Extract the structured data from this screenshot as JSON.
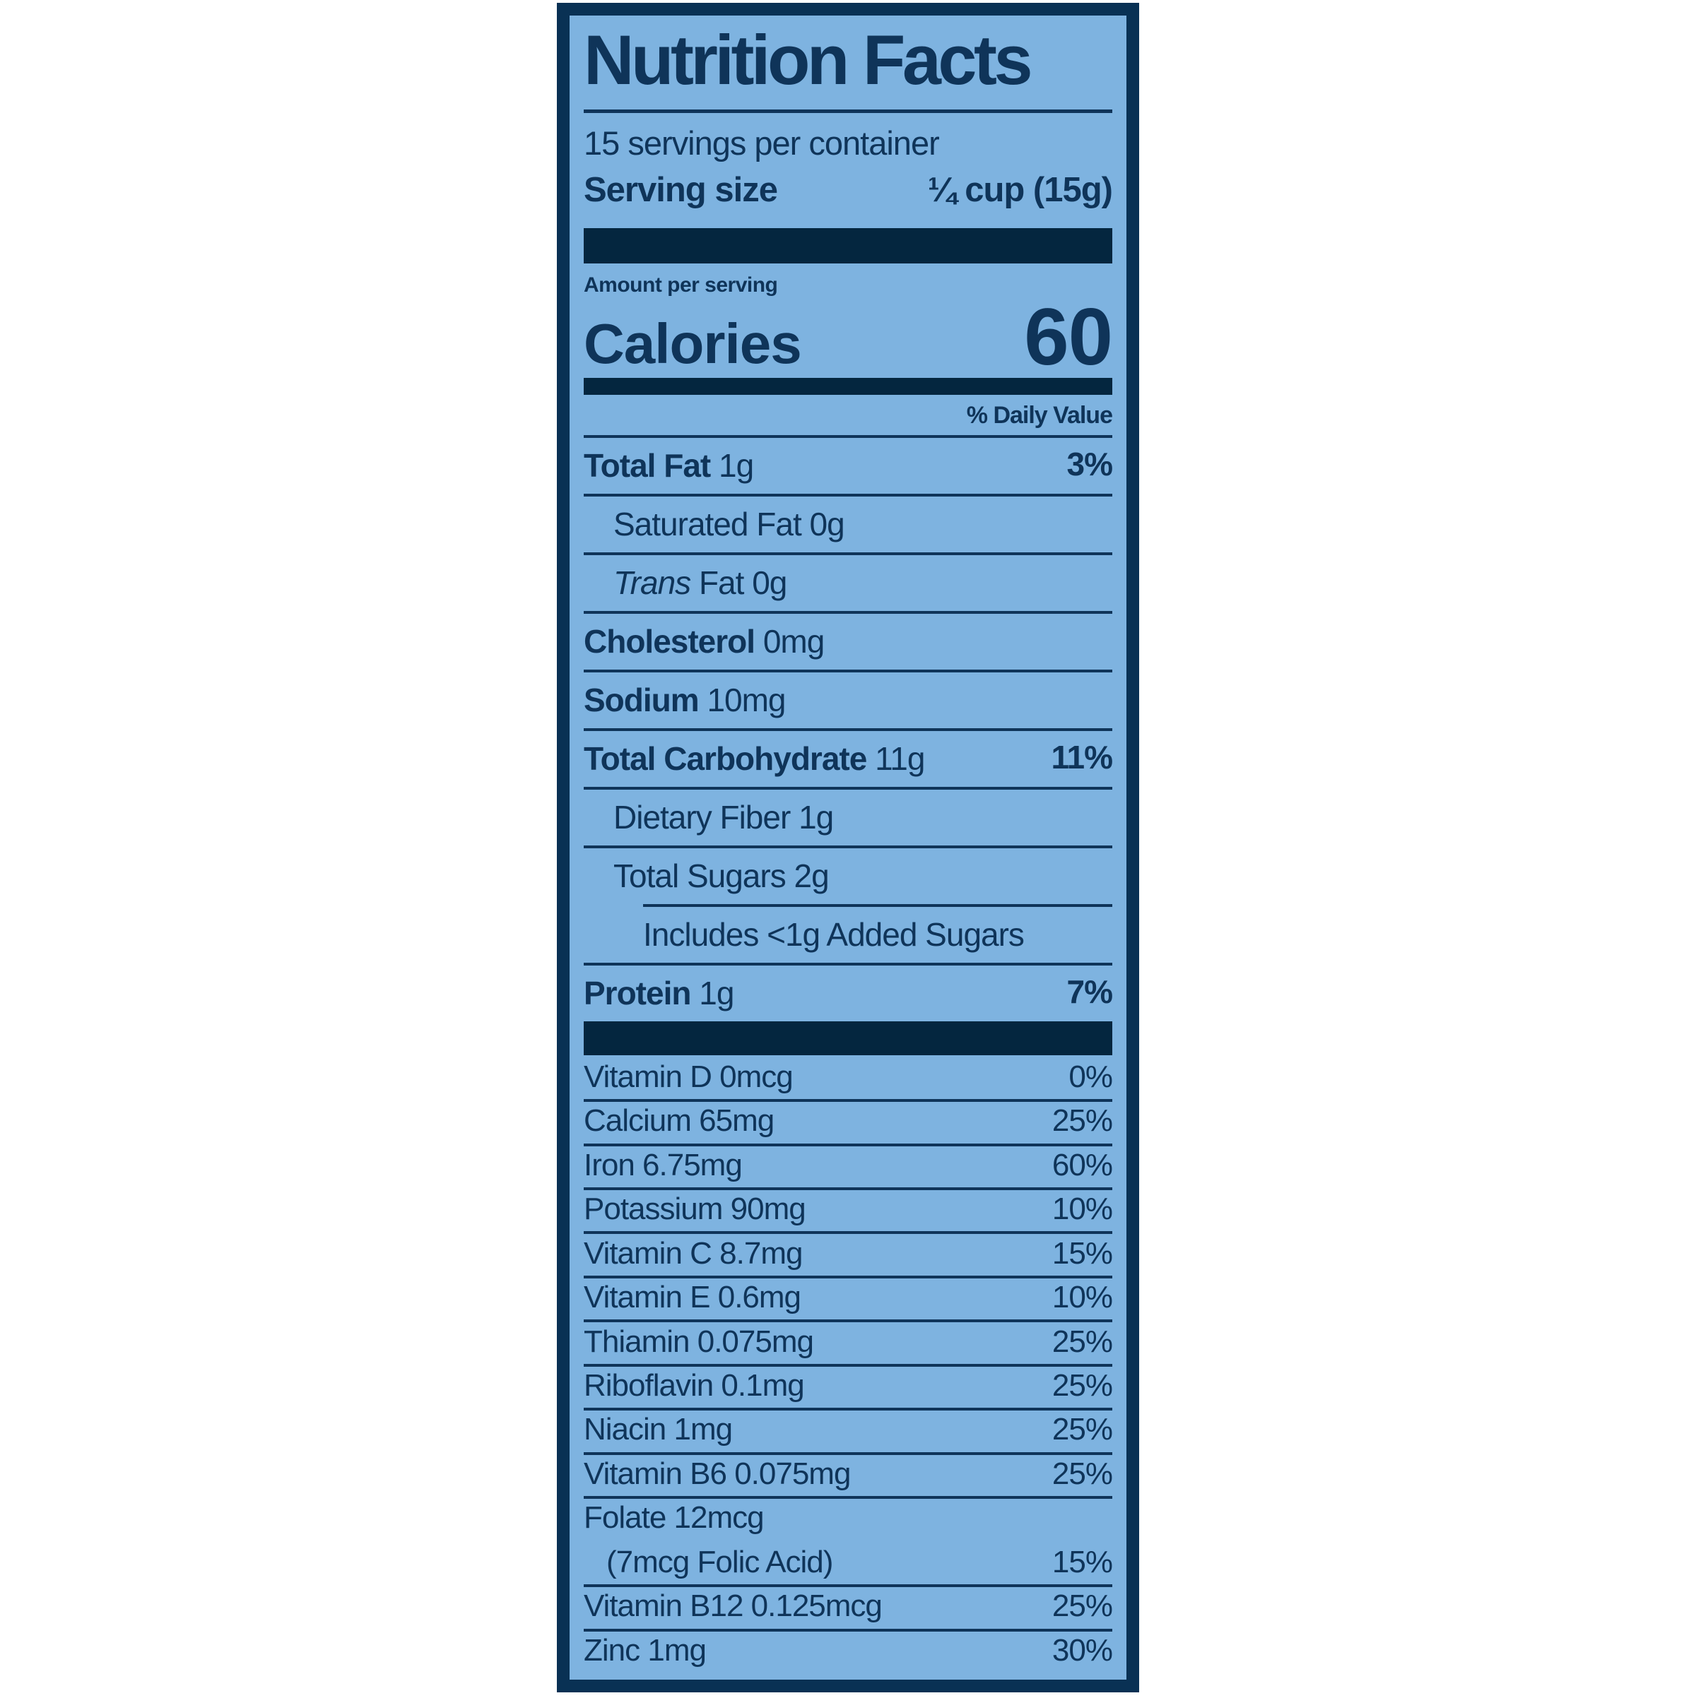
{
  "label": {
    "title": "Nutrition Facts",
    "servings_per_container": "15 servings per container",
    "serving_size_label": "Serving size",
    "serving_size_value": "¼ cup (15g)",
    "amount_per_serving": "Amount per serving",
    "calories_label": "Calories",
    "calories_value": "60",
    "daily_value_header": "% Daily Value",
    "nutrients": [
      {
        "name": "Total Fat",
        "amount": "1g",
        "dv": "3%",
        "bold": true,
        "indent": 0
      },
      {
        "name": "Saturated Fat",
        "amount": "0g",
        "dv": "",
        "indent": 1
      },
      {
        "italic_prefix": "Trans",
        "name": "Fat",
        "amount": "0g",
        "dv": "",
        "indent": 1
      },
      {
        "name": "Cholesterol",
        "amount": "0mg",
        "dv": "",
        "bold": true,
        "indent": 0
      },
      {
        "name": "Sodium",
        "amount": "10mg",
        "dv": "",
        "bold": true,
        "indent": 0
      },
      {
        "name": "Total Carbohydrate",
        "amount": "11g",
        "dv": "11%",
        "bold": true,
        "indent": 0
      },
      {
        "name": "Dietary Fiber",
        "amount": "1g",
        "dv": "",
        "indent": 1
      },
      {
        "name": "Total Sugars",
        "amount": "2g",
        "dv": "",
        "indent": 1
      },
      {
        "name": "Includes <1g Added Sugars",
        "amount": "",
        "dv": "",
        "indent": 2,
        "rule_indent": true
      },
      {
        "name": "Protein",
        "amount": "1g",
        "dv": "7%",
        "bold": true,
        "indent": 0
      }
    ],
    "vitamins": [
      {
        "name": "Vitamin D",
        "amount": "0mcg",
        "dv": "0%"
      },
      {
        "name": "Calcium",
        "amount": "65mg",
        "dv": "25%"
      },
      {
        "name": "Iron",
        "amount": "6.75mg",
        "dv": "60%"
      },
      {
        "name": "Potassium",
        "amount": "90mg",
        "dv": "10%"
      },
      {
        "name": "Vitamin C",
        "amount": "8.7mg",
        "dv": "15%"
      },
      {
        "name": "Vitamin E",
        "amount": "0.6mg",
        "dv": "10%"
      },
      {
        "name": "Thiamin",
        "amount": "0.075mg",
        "dv": "25%"
      },
      {
        "name": "Riboflavin",
        "amount": "0.1mg",
        "dv": "25%"
      },
      {
        "name": "Niacin",
        "amount": "1mg",
        "dv": "25%"
      },
      {
        "name": "Vitamin B6",
        "amount": "0.075mg",
        "dv": "25%"
      },
      {
        "name": "Folate",
        "amount": "12mcg",
        "line2": "(7mcg Folic Acid)",
        "dv": "15%"
      },
      {
        "name": "Vitamin B12",
        "amount": "0.125mcg",
        "dv": "25%"
      },
      {
        "name": "Zinc",
        "amount": "1mg",
        "dv": "30%"
      }
    ],
    "colors": {
      "background": "#7EB3E0",
      "ink": "#0F3459",
      "bars": "#04263F",
      "page_background": "#FFFFFF"
    }
  }
}
